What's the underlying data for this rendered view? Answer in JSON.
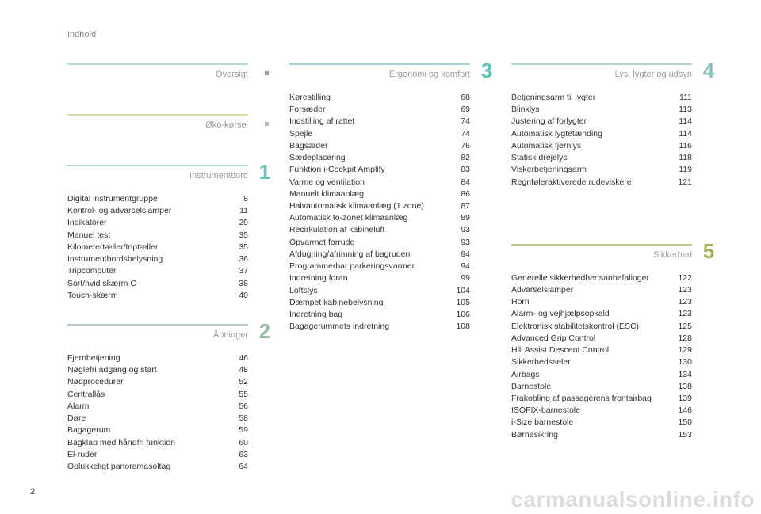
{
  "header": "Indhold",
  "page_number": "2",
  "watermark": "carmanualsonline.info",
  "colors": {
    "oversigt_bar": "#b7d9d6",
    "oversigt_dot": "#999999",
    "oko_bar": "#d8de9f",
    "oko_dot": "#bbbbbb",
    "s1_bar": "#aed6d2",
    "s1_num": "#67c1b8",
    "s2_bar": "#b8cbbf",
    "s2_num": "#9ab89f",
    "s3_bar": "#a5d4cf",
    "s3_num": "#62c1b7",
    "s4_bar": "#b4d6d1",
    "s4_num": "#88c4bc",
    "s5_bar": "#bfc98e",
    "s5_num": "#a5b05f"
  },
  "col1": {
    "oversigt_title": "Oversigt",
    "oko_title": "Øko-kørsel",
    "s1": {
      "title": "Instrumentbord",
      "num": "1",
      "items": [
        {
          "label": "Digital instrumentgruppe",
          "pg": "8"
        },
        {
          "label": "Kontrol- og advarselslamper",
          "pg": "11"
        },
        {
          "label": "Indikatorer",
          "pg": "29"
        },
        {
          "label": "Manuel test",
          "pg": "35"
        },
        {
          "label": "Kilometertæller/triptæller",
          "pg": "35"
        },
        {
          "label": "Instrumentbordsbelysning",
          "pg": "36"
        },
        {
          "label": "Tripcomputer",
          "pg": "37"
        },
        {
          "label": "Sort/hvid skærm C",
          "pg": "38"
        },
        {
          "label": "Touch-skærm",
          "pg": "40"
        }
      ]
    },
    "s2": {
      "title": "Åbninger",
      "num": "2",
      "items": [
        {
          "label": "Fjernbetjening",
          "pg": "46"
        },
        {
          "label": "Nøglefri adgang og start",
          "pg": "48"
        },
        {
          "label": "Nødprocedurer",
          "pg": "52"
        },
        {
          "label": "Centrallås",
          "pg": "55"
        },
        {
          "label": "Alarm",
          "pg": "56"
        },
        {
          "label": "Døre",
          "pg": "58"
        },
        {
          "label": "Bagagerum",
          "pg": "59"
        },
        {
          "label": "Bagklap med håndfri funktion",
          "pg": "60"
        },
        {
          "label": "El-ruder",
          "pg": "63"
        },
        {
          "label": "Oplukkeligt panoramasoltag",
          "pg": "64"
        }
      ]
    }
  },
  "col2": {
    "s3": {
      "title": "Ergonomi og komfort",
      "num": "3",
      "items": [
        {
          "label": "Kørestilling",
          "pg": "68"
        },
        {
          "label": "Forsæder",
          "pg": "69"
        },
        {
          "label": "Indstilling af rattet",
          "pg": "74"
        },
        {
          "label": "Spejle",
          "pg": "74"
        },
        {
          "label": "Bagsæder",
          "pg": "76"
        },
        {
          "label": "Sædeplacering",
          "pg": "82"
        },
        {
          "label": "Funktion i-Cockpit Amplify",
          "pg": "83"
        },
        {
          "label": "Varme og ventilation",
          "pg": "84"
        },
        {
          "label": "Manuelt klimaanlæg",
          "pg": "86"
        },
        {
          "label": "Halvautomatisk klimaanlæg (1 zone)",
          "pg": "87"
        },
        {
          "label": "Automatisk to-zonet klimaanlæg",
          "pg": "89"
        },
        {
          "label": "Recirkulation af kabineluft",
          "pg": "93"
        },
        {
          "label": "Opvarmet forrude",
          "pg": "93"
        },
        {
          "label": "Afdugning/afrimning af bagruden",
          "pg": "94"
        },
        {
          "label": "Programmerbar parkeringsvarmer",
          "pg": "94"
        },
        {
          "label": "Indretning foran",
          "pg": "99"
        },
        {
          "label": "Loftslys",
          "pg": "104"
        },
        {
          "label": "Dæmpet kabinebelysning",
          "pg": "105"
        },
        {
          "label": "Indretning bag",
          "pg": "106"
        },
        {
          "label": "Bagagerummets indretning",
          "pg": "108"
        }
      ]
    }
  },
  "col3": {
    "s4": {
      "title": "Lys, lygter og udsyn",
      "num": "4",
      "items": [
        {
          "label": "Betjeningsarm til lygter",
          "pg": "111"
        },
        {
          "label": "Blinklys",
          "pg": "113"
        },
        {
          "label": "Justering af forlygter",
          "pg": "114"
        },
        {
          "label": "Automatisk lygtetænding",
          "pg": "114"
        },
        {
          "label": "Automatisk fjernlys",
          "pg": "116"
        },
        {
          "label": "Statisk drejelys",
          "pg": "118"
        },
        {
          "label": "Viskerbetjeningsarm",
          "pg": "119"
        },
        {
          "label": "Regnføleraktiverede rudeviskere",
          "pg": "121"
        }
      ]
    },
    "s5": {
      "title": "Sikkerhed",
      "num": "5",
      "items": [
        {
          "label": "Generelle sikkerhedhedsanbefalinger",
          "pg": "122"
        },
        {
          "label": "Advarselslamper",
          "pg": "123"
        },
        {
          "label": "Horn",
          "pg": "123"
        },
        {
          "label": "Alarm- og vejhjælpsopkald",
          "pg": "123"
        },
        {
          "label": "Elektronisk stabilitetskontrol (ESC)",
          "pg": "125"
        },
        {
          "label": "Advanced Grip Control",
          "pg": "128"
        },
        {
          "label": "Hill Assist Descent Control",
          "pg": "129"
        },
        {
          "label": "Sikkerhedsseler",
          "pg": "130"
        },
        {
          "label": "Airbags",
          "pg": "134"
        },
        {
          "label": "Barnestole",
          "pg": "138"
        },
        {
          "label": "Frakobling af passagerens frontairbag",
          "pg": "139"
        },
        {
          "label": "ISOFIX-barnestole",
          "pg": "146"
        },
        {
          "label": "i-Size barnestole",
          "pg": "150"
        },
        {
          "label": "Børnesikring",
          "pg": "153"
        }
      ]
    }
  }
}
